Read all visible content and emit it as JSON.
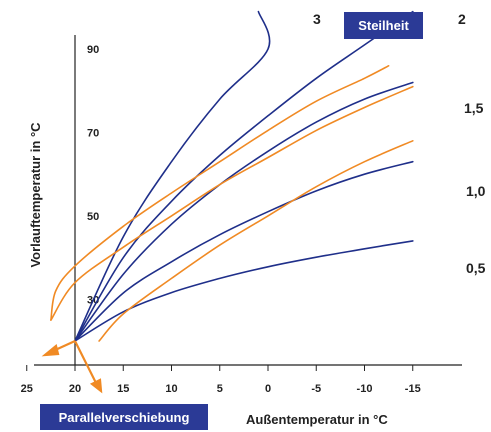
{
  "chart_data": {
    "type": "line",
    "xlabel": "Außentemperatur in °C",
    "ylabel": "Vorlauftemperatur in °C",
    "x_ticks": [
      "25",
      "20",
      "15",
      "10",
      "5",
      "0",
      "-5",
      "-10",
      "-15"
    ],
    "x_tick_values": [
      25,
      20,
      15,
      10,
      5,
      0,
      -5,
      -10,
      -15
    ],
    "y_ticks": [
      "30",
      "50",
      "70",
      "90"
    ],
    "y_tick_values": [
      30,
      50,
      70,
      90
    ],
    "xlim": [
      25,
      -15
    ],
    "ylim": [
      20,
      99
    ],
    "steilheit_label": "Steilheit",
    "parallel_label": "Parallelverschiebung",
    "colors": {
      "blue": "#1f2f8a",
      "orange": "#f08a24",
      "badge": "#2b3a96",
      "axis": "#222222"
    },
    "series": [
      {
        "name": "0,5",
        "color": "#1f2f8a",
        "points": [
          [
            20,
            20
          ],
          [
            15,
            27
          ],
          [
            10,
            31.6
          ],
          [
            5,
            35
          ],
          [
            0,
            37.8
          ],
          [
            -5,
            40.1
          ],
          [
            -10,
            42.1
          ],
          [
            -15,
            44
          ]
        ]
      },
      {
        "name": "1,0",
        "color": "#1f2f8a",
        "points": [
          [
            20,
            20
          ],
          [
            15,
            31.5
          ],
          [
            10,
            39
          ],
          [
            5,
            45.5
          ],
          [
            0,
            51
          ],
          [
            -5,
            56
          ],
          [
            -10,
            60
          ],
          [
            -15,
            63
          ]
        ]
      },
      {
        "name": "1,5",
        "color": "#1f2f8a",
        "points": [
          [
            20,
            20
          ],
          [
            15,
            36
          ],
          [
            10,
            48
          ],
          [
            5,
            57.5
          ],
          [
            0,
            65.5
          ],
          [
            -5,
            72.5
          ],
          [
            -10,
            78
          ],
          [
            -15,
            82
          ]
        ]
      },
      {
        "name": "2",
        "color": "#1f2f8a",
        "points": [
          [
            20,
            20
          ],
          [
            15,
            40
          ],
          [
            10,
            53.5
          ],
          [
            5,
            64.5
          ],
          [
            0,
            74
          ],
          [
            -5,
            83
          ],
          [
            -10,
            91
          ],
          [
            -15,
            99
          ]
        ]
      },
      {
        "name": "3",
        "color": "#1f2f8a",
        "points": [
          [
            20,
            20
          ],
          [
            15,
            45
          ],
          [
            10,
            63
          ],
          [
            5,
            78
          ],
          [
            0,
            90
          ],
          [
            1,
            99
          ]
        ]
      },
      {
        "color": "#f08a24",
        "points": [
          [
            17.5,
            20
          ],
          [
            15,
            26.5
          ],
          [
            10,
            35
          ],
          [
            5,
            43
          ],
          [
            0,
            50
          ],
          [
            -5,
            57
          ],
          [
            -10,
            63
          ],
          [
            -15,
            68
          ]
        ]
      },
      {
        "color": "#f08a24",
        "points": [
          [
            22.5,
            25
          ],
          [
            20,
            34
          ],
          [
            15,
            42.5
          ],
          [
            10,
            50
          ],
          [
            5,
            57.5
          ],
          [
            0,
            64
          ],
          [
            -5,
            70.5
          ],
          [
            -10,
            76
          ],
          [
            -15,
            81
          ]
        ]
      },
      {
        "color": "#f08a24",
        "points": [
          [
            22.5,
            25
          ],
          [
            22,
            32
          ],
          [
            20,
            38
          ],
          [
            15,
            47.5
          ],
          [
            10,
            55.5
          ],
          [
            5,
            63
          ],
          [
            0,
            70.5
          ],
          [
            -5,
            77.5
          ],
          [
            -10,
            83
          ],
          [
            -12.5,
            86
          ]
        ]
      }
    ]
  }
}
